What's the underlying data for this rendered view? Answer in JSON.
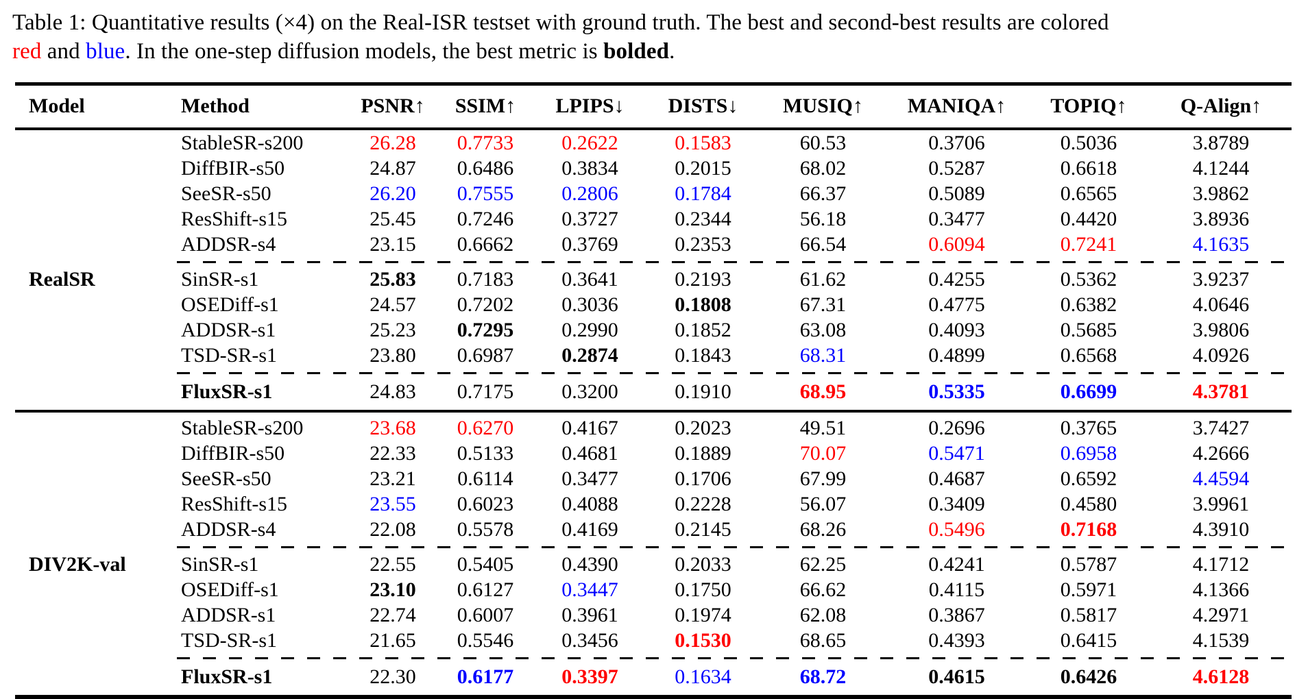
{
  "caption": {
    "line1": "Table 1: Quantitative results (×4) on the Real-ISR testset with ground truth. The best and second-best results are colored",
    "line2_parts": [
      {
        "t": "red",
        "s": "red"
      },
      {
        "t": " and ",
        "s": ""
      },
      {
        "t": "blue",
        "s": "blue"
      },
      {
        "t": ". In the one-step diffusion models, the best metric is ",
        "s": ""
      },
      {
        "t": "bolded",
        "s": "bold"
      },
      {
        "t": ".",
        "s": ""
      }
    ]
  },
  "colors": {
    "best": "#ff0000",
    "second_best": "#0000ff",
    "text": "#000000"
  },
  "table": {
    "columns": [
      "Model",
      "Method",
      "PSNR↑",
      "SSIM↑",
      "LPIPS↓",
      "DISTS↓",
      "MUSIQ↑",
      "MANIQA↑",
      "TOPIQ↑",
      "Q-Align↑"
    ],
    "groups": [
      {
        "model": "RealSR",
        "rows": [
          {
            "method": "StableSR-s200",
            "bold_method": false,
            "cells": [
              [
                "26.28",
                "r"
              ],
              [
                "0.7733",
                "r"
              ],
              [
                "0.2622",
                "r"
              ],
              [
                "0.1583",
                "r"
              ],
              [
                "60.53",
                ""
              ],
              [
                "0.3706",
                ""
              ],
              [
                "0.5036",
                ""
              ],
              [
                "3.8789",
                ""
              ]
            ]
          },
          {
            "method": "DiffBIR-s50",
            "bold_method": false,
            "cells": [
              [
                "24.87",
                ""
              ],
              [
                "0.6486",
                ""
              ],
              [
                "0.3834",
                ""
              ],
              [
                "0.2015",
                ""
              ],
              [
                "68.02",
                ""
              ],
              [
                "0.5287",
                ""
              ],
              [
                "0.6618",
                ""
              ],
              [
                "4.1244",
                ""
              ]
            ]
          },
          {
            "method": "SeeSR-s50",
            "bold_method": false,
            "cells": [
              [
                "26.20",
                "u"
              ],
              [
                "0.7555",
                "u"
              ],
              [
                "0.2806",
                "u"
              ],
              [
                "0.1784",
                "u"
              ],
              [
                "66.37",
                ""
              ],
              [
                "0.5089",
                ""
              ],
              [
                "0.6565",
                ""
              ],
              [
                "3.9862",
                ""
              ]
            ]
          },
          {
            "method": "ResShift-s15",
            "bold_method": false,
            "cells": [
              [
                "25.45",
                ""
              ],
              [
                "0.7246",
                ""
              ],
              [
                "0.3727",
                ""
              ],
              [
                "0.2344",
                ""
              ],
              [
                "56.18",
                ""
              ],
              [
                "0.3477",
                ""
              ],
              [
                "0.4420",
                ""
              ],
              [
                "3.8936",
                ""
              ]
            ]
          },
          {
            "method": "ADDSR-s4",
            "bold_method": false,
            "cells": [
              [
                "23.15",
                ""
              ],
              [
                "0.6662",
                ""
              ],
              [
                "0.3769",
                ""
              ],
              [
                "0.2353",
                ""
              ],
              [
                "66.54",
                ""
              ],
              [
                "0.6094",
                "r"
              ],
              [
                "0.7241",
                "r"
              ],
              [
                "4.1635",
                "u"
              ]
            ]
          },
          {
            "method": "SinSR-s1",
            "bold_method": false,
            "cells": [
              [
                "25.83",
                "B"
              ],
              [
                "0.7183",
                ""
              ],
              [
                "0.3641",
                ""
              ],
              [
                "0.2193",
                ""
              ],
              [
                "61.62",
                ""
              ],
              [
                "0.4255",
                ""
              ],
              [
                "0.5362",
                ""
              ],
              [
                "3.9237",
                ""
              ]
            ]
          },
          {
            "method": "OSEDiff-s1",
            "bold_method": false,
            "cells": [
              [
                "24.57",
                ""
              ],
              [
                "0.7202",
                ""
              ],
              [
                "0.3036",
                ""
              ],
              [
                "0.1808",
                "B"
              ],
              [
                "67.31",
                ""
              ],
              [
                "0.4775",
                ""
              ],
              [
                "0.6382",
                ""
              ],
              [
                "4.0646",
                ""
              ]
            ]
          },
          {
            "method": "ADDSR-s1",
            "bold_method": false,
            "cells": [
              [
                "25.23",
                ""
              ],
              [
                "0.7295",
                "B"
              ],
              [
                "0.2990",
                ""
              ],
              [
                "0.1852",
                ""
              ],
              [
                "63.08",
                ""
              ],
              [
                "0.4093",
                ""
              ],
              [
                "0.5685",
                ""
              ],
              [
                "3.9806",
                ""
              ]
            ]
          },
          {
            "method": "TSD-SR-s1",
            "bold_method": false,
            "cells": [
              [
                "23.80",
                ""
              ],
              [
                "0.6987",
                ""
              ],
              [
                "0.2874",
                "B"
              ],
              [
                "0.1843",
                ""
              ],
              [
                "68.31",
                "u"
              ],
              [
                "0.4899",
                ""
              ],
              [
                "0.6568",
                ""
              ],
              [
                "4.0926",
                ""
              ]
            ]
          },
          {
            "method": "FluxSR-s1",
            "bold_method": true,
            "cells": [
              [
                "24.83",
                ""
              ],
              [
                "0.7175",
                ""
              ],
              [
                "0.3200",
                ""
              ],
              [
                "0.1910",
                ""
              ],
              [
                "68.95",
                "rB"
              ],
              [
                "0.5335",
                "uB"
              ],
              [
                "0.6699",
                "uB"
              ],
              [
                "4.3781",
                "rB"
              ]
            ]
          }
        ]
      },
      {
        "model": "DIV2K-val",
        "rows": [
          {
            "method": "StableSR-s200",
            "bold_method": false,
            "cells": [
              [
                "23.68",
                "r"
              ],
              [
                "0.6270",
                "r"
              ],
              [
                "0.4167",
                ""
              ],
              [
                "0.2023",
                ""
              ],
              [
                "49.51",
                ""
              ],
              [
                "0.2696",
                ""
              ],
              [
                "0.3765",
                ""
              ],
              [
                "3.7427",
                ""
              ]
            ]
          },
          {
            "method": "DiffBIR-s50",
            "bold_method": false,
            "cells": [
              [
                "22.33",
                ""
              ],
              [
                "0.5133",
                ""
              ],
              [
                "0.4681",
                ""
              ],
              [
                "0.1889",
                ""
              ],
              [
                "70.07",
                "r"
              ],
              [
                "0.5471",
                "u"
              ],
              [
                "0.6958",
                "u"
              ],
              [
                "4.2666",
                ""
              ]
            ]
          },
          {
            "method": "SeeSR-s50",
            "bold_method": false,
            "cells": [
              [
                "23.21",
                ""
              ],
              [
                "0.6114",
                ""
              ],
              [
                "0.3477",
                ""
              ],
              [
                "0.1706",
                ""
              ],
              [
                "67.99",
                ""
              ],
              [
                "0.4687",
                ""
              ],
              [
                "0.6592",
                ""
              ],
              [
                "4.4594",
                "u"
              ]
            ]
          },
          {
            "method": "ResShift-s15",
            "bold_method": false,
            "cells": [
              [
                "23.55",
                "u"
              ],
              [
                "0.6023",
                ""
              ],
              [
                "0.4088",
                ""
              ],
              [
                "0.2228",
                ""
              ],
              [
                "56.07",
                ""
              ],
              [
                "0.3409",
                ""
              ],
              [
                "0.4580",
                ""
              ],
              [
                "3.9961",
                ""
              ]
            ]
          },
          {
            "method": "ADDSR-s4",
            "bold_method": false,
            "cells": [
              [
                "22.08",
                ""
              ],
              [
                "0.5578",
                ""
              ],
              [
                "0.4169",
                ""
              ],
              [
                "0.2145",
                ""
              ],
              [
                "68.26",
                ""
              ],
              [
                "0.5496",
                "r"
              ],
              [
                "0.7168",
                "rB"
              ],
              [
                "4.3910",
                ""
              ]
            ]
          },
          {
            "method": "SinSR-s1",
            "bold_method": false,
            "cells": [
              [
                "22.55",
                ""
              ],
              [
                "0.5405",
                ""
              ],
              [
                "0.4390",
                ""
              ],
              [
                "0.2033",
                ""
              ],
              [
                "62.25",
                ""
              ],
              [
                "0.4241",
                ""
              ],
              [
                "0.5787",
                ""
              ],
              [
                "4.1712",
                ""
              ]
            ]
          },
          {
            "method": "OSEDiff-s1",
            "bold_method": false,
            "cells": [
              [
                "23.10",
                "B"
              ],
              [
                "0.6127",
                ""
              ],
              [
                "0.3447",
                "u"
              ],
              [
                "0.1750",
                ""
              ],
              [
                "66.62",
                ""
              ],
              [
                "0.4115",
                ""
              ],
              [
                "0.5971",
                ""
              ],
              [
                "4.1366",
                ""
              ]
            ]
          },
          {
            "method": "ADDSR-s1",
            "bold_method": false,
            "cells": [
              [
                "22.74",
                ""
              ],
              [
                "0.6007",
                ""
              ],
              [
                "0.3961",
                ""
              ],
              [
                "0.1974",
                ""
              ],
              [
                "62.08",
                ""
              ],
              [
                "0.3867",
                ""
              ],
              [
                "0.5817",
                ""
              ],
              [
                "4.2971",
                ""
              ]
            ]
          },
          {
            "method": "TSD-SR-s1",
            "bold_method": false,
            "cells": [
              [
                "21.65",
                ""
              ],
              [
                "0.5546",
                ""
              ],
              [
                "0.3456",
                ""
              ],
              [
                "0.1530",
                "rB"
              ],
              [
                "68.65",
                ""
              ],
              [
                "0.4393",
                ""
              ],
              [
                "0.6415",
                ""
              ],
              [
                "4.1539",
                ""
              ]
            ]
          },
          {
            "method": "FluxSR-s1",
            "bold_method": true,
            "cells": [
              [
                "22.30",
                ""
              ],
              [
                "0.6177",
                "uB"
              ],
              [
                "0.3397",
                "rB"
              ],
              [
                "0.1634",
                "u"
              ],
              [
                "68.72",
                "uB"
              ],
              [
                "0.4615",
                "B"
              ],
              [
                "0.6426",
                "B"
              ],
              [
                "4.6128",
                "rB"
              ]
            ]
          }
        ]
      }
    ]
  }
}
